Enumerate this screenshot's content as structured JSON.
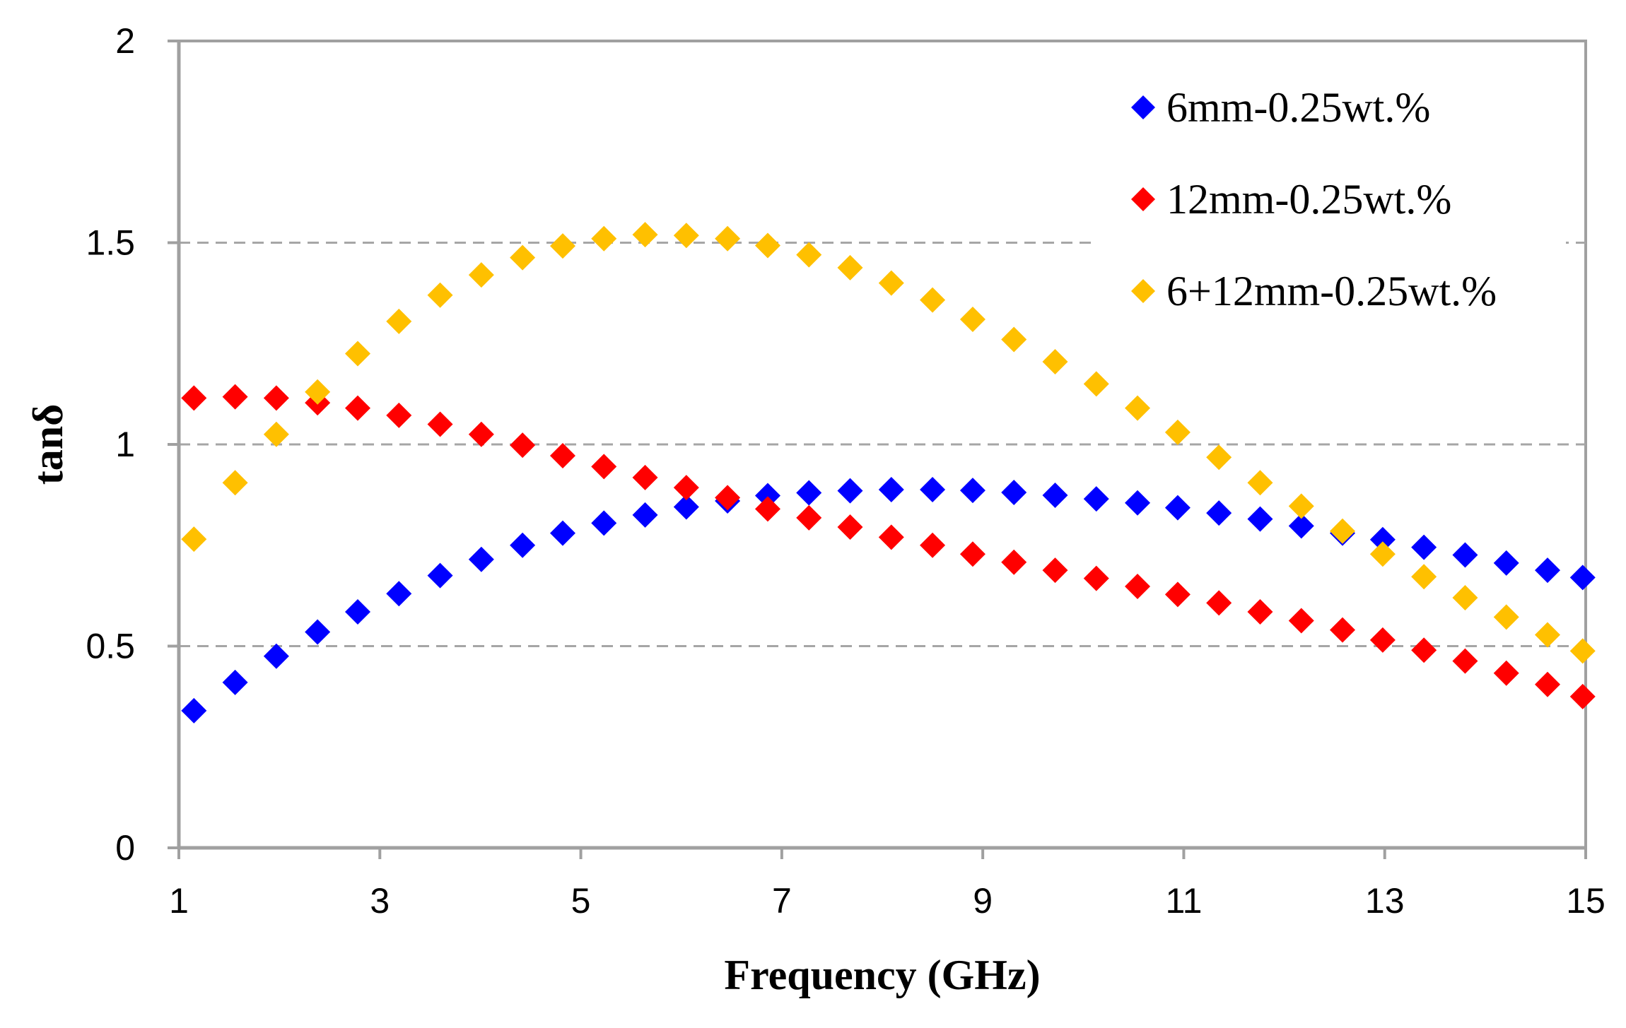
{
  "chart_data": {
    "type": "scatter",
    "title": "",
    "xlabel": "Frequency (GHz)",
    "ylabel": "tanδ",
    "xlim": [
      1,
      15
    ],
    "ylim": [
      0,
      2
    ],
    "xticks": [
      "1",
      "3",
      "5",
      "7",
      "9",
      "11",
      "13",
      "15"
    ],
    "yticks": [
      "0",
      "0.5",
      "1",
      "1.5",
      "2"
    ],
    "grid": "horizontal dashed",
    "legend_position": "top-right",
    "x": [
      1.15,
      1.56,
      1.97,
      2.38,
      2.78,
      3.19,
      3.6,
      4.01,
      4.42,
      4.82,
      5.23,
      5.64,
      6.05,
      6.46,
      6.86,
      7.27,
      7.68,
      8.09,
      8.5,
      8.9,
      9.31,
      9.72,
      10.13,
      10.54,
      10.94,
      11.35,
      11.76,
      12.17,
      12.58,
      12.98,
      13.39,
      13.8,
      14.21,
      14.62,
      14.97
    ],
    "series": [
      {
        "name": "6mm-0.25wt.%",
        "color": "#0000ff",
        "values": [
          0.34,
          0.41,
          0.475,
          0.535,
          0.585,
          0.63,
          0.675,
          0.715,
          0.75,
          0.78,
          0.805,
          0.825,
          0.845,
          0.86,
          0.873,
          0.88,
          0.885,
          0.888,
          0.888,
          0.886,
          0.881,
          0.874,
          0.865,
          0.855,
          0.843,
          0.83,
          0.815,
          0.798,
          0.78,
          0.764,
          0.745,
          0.726,
          0.706,
          0.688,
          0.67
        ]
      },
      {
        "name": "12mm-0.25wt.%",
        "color": "#ff0000",
        "values": [
          1.115,
          1.118,
          1.115,
          1.103,
          1.09,
          1.072,
          1.05,
          1.025,
          0.998,
          0.972,
          0.945,
          0.918,
          0.893,
          0.868,
          0.84,
          0.818,
          0.795,
          0.77,
          0.75,
          0.728,
          0.708,
          0.688,
          0.668,
          0.648,
          0.628,
          0.607,
          0.585,
          0.563,
          0.54,
          0.515,
          0.49,
          0.463,
          0.433,
          0.405,
          0.375
        ]
      },
      {
        "name": "6+12mm-0.25wt.%",
        "color": "#ffc000",
        "values": [
          0.765,
          0.905,
          1.025,
          1.13,
          1.225,
          1.305,
          1.37,
          1.42,
          1.463,
          1.492,
          1.51,
          1.52,
          1.518,
          1.51,
          1.493,
          1.47,
          1.438,
          1.4,
          1.358,
          1.31,
          1.26,
          1.205,
          1.15,
          1.09,
          1.03,
          0.968,
          0.905,
          0.847,
          0.785,
          0.728,
          0.672,
          0.62,
          0.572,
          0.528,
          0.488
        ]
      }
    ]
  }
}
